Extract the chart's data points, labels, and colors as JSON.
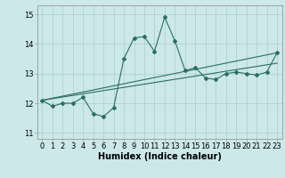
{
  "xlabel": "Humidex (Indice chaleur)",
  "background_color": "#cce8e8",
  "line_color": "#2a6e63",
  "x_data": [
    0,
    1,
    2,
    3,
    4,
    5,
    6,
    7,
    8,
    9,
    10,
    11,
    12,
    13,
    14,
    15,
    16,
    17,
    18,
    19,
    20,
    21,
    22,
    23
  ],
  "y_main": [
    12.1,
    11.9,
    12.0,
    12.0,
    12.2,
    11.65,
    11.55,
    11.85,
    13.5,
    14.2,
    14.25,
    13.75,
    14.9,
    14.1,
    13.1,
    13.2,
    12.85,
    12.8,
    13.0,
    13.05,
    13.0,
    12.95,
    13.05,
    13.7
  ],
  "y_line_upper_start": 12.1,
  "y_line_upper_end": 13.7,
  "y_line_lower_start": 12.1,
  "y_line_lower_end": 13.35,
  "ylim": [
    10.8,
    15.3
  ],
  "xlim": [
    -0.5,
    23.5
  ],
  "yticks": [
    11,
    12,
    13,
    14,
    15
  ],
  "grid_color": "#aacfcf",
  "tick_fontsize": 6,
  "label_fontsize": 7
}
